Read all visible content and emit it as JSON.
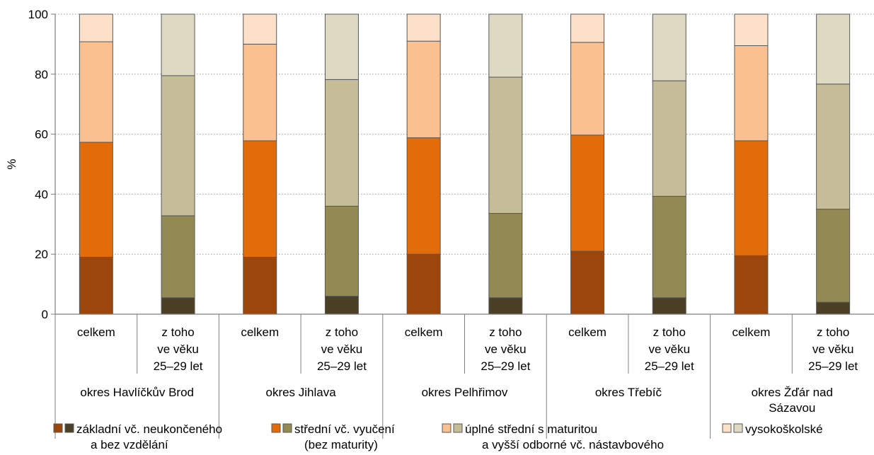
{
  "chart_data": {
    "type": "bar",
    "stacked": true,
    "ylabel": "%",
    "ylim": [
      0,
      100
    ],
    "yticks": [
      0,
      20,
      40,
      60,
      80,
      100
    ],
    "grid": "horizontal dotted",
    "legend_position": "bottom",
    "sub_labels": {
      "total": [
        "celkem"
      ],
      "age": [
        "z toho",
        "ve věku",
        "25–29 let"
      ]
    },
    "groups": [
      {
        "label": [
          "okres Havlíčkův Brod"
        ]
      },
      {
        "label": [
          "okres Jihlava"
        ]
      },
      {
        "label": [
          "okres Pelhřimov"
        ]
      },
      {
        "label": [
          "okres Třebíč"
        ]
      },
      {
        "label": [
          "okres Žďár nad",
          "Sázavou"
        ]
      }
    ],
    "bars": [
      {
        "group": 0,
        "kind": "total",
        "values": [
          19.0,
          38.3,
          33.5,
          9.2
        ]
      },
      {
        "group": 0,
        "kind": "age",
        "values": [
          5.5,
          27.3,
          46.7,
          20.5
        ]
      },
      {
        "group": 1,
        "kind": "total",
        "values": [
          19.0,
          38.8,
          32.2,
          10.0
        ]
      },
      {
        "group": 1,
        "kind": "age",
        "values": [
          6.0,
          30.0,
          42.2,
          21.8
        ]
      },
      {
        "group": 2,
        "kind": "total",
        "values": [
          20.0,
          38.8,
          32.2,
          9.0
        ]
      },
      {
        "group": 2,
        "kind": "age",
        "values": [
          5.5,
          28.1,
          45.4,
          21.0
        ]
      },
      {
        "group": 3,
        "kind": "total",
        "values": [
          21.0,
          38.7,
          30.9,
          9.4
        ]
      },
      {
        "group": 3,
        "kind": "age",
        "values": [
          5.5,
          33.8,
          38.5,
          22.2
        ]
      },
      {
        "group": 4,
        "kind": "total",
        "values": [
          19.5,
          38.3,
          31.7,
          10.5
        ]
      },
      {
        "group": 4,
        "kind": "age",
        "values": [
          4.0,
          31.0,
          41.7,
          23.3
        ]
      }
    ],
    "series": [
      {
        "label": [
          "základní vč. neukončeného",
          "a bez vzdělání"
        ],
        "color_total": "#9c460c",
        "color_age": "#4b4025"
      },
      {
        "label": [
          "střední vč. vyučení",
          "(bez maturity)"
        ],
        "color_total": "#e36c0a",
        "color_age": "#938953"
      },
      {
        "label": [
          "úplné střední s maturitou",
          "a vyšší odborné vč. nástavbového"
        ],
        "color_total": "#fac090",
        "color_age": "#c4bd97"
      },
      {
        "label": [
          "vysokoškolské"
        ],
        "color_total": "#fde0c8",
        "color_age": "#ddd9c3"
      }
    ]
  }
}
